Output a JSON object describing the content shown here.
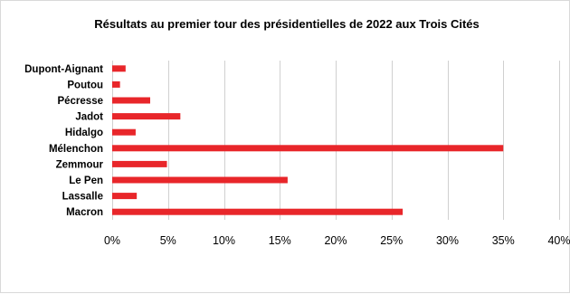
{
  "chart_data": {
    "type": "bar",
    "orientation": "horizontal",
    "title": "Résultats au premier tour des présidentielles de 2022 aux Trois Cités",
    "categories": [
      "Dupont-Aignant",
      "Poutou",
      "Pécresse ",
      "Jadot",
      "Hidalgo",
      "Mélenchon",
      "Zemmour",
      "Le Pen",
      "Lassalle",
      "Macron"
    ],
    "values": [
      1.2,
      0.7,
      3.4,
      6.1,
      2.1,
      35.0,
      4.9,
      15.7,
      2.2,
      26.0
    ],
    "value_unit": "percent",
    "xlim": [
      0,
      40
    ],
    "xticks": [
      0,
      5,
      10,
      15,
      20,
      25,
      30,
      35,
      40
    ],
    "xtick_labels": [
      "0%",
      "5%",
      "10%",
      "15%",
      "20%",
      "25%",
      "30%",
      "35%",
      "40%"
    ],
    "xlabel": "",
    "ylabel": "",
    "grid": "vertical",
    "legend": "none",
    "bar_color": "#e8262a",
    "grid_color": "#d0d0d0"
  }
}
